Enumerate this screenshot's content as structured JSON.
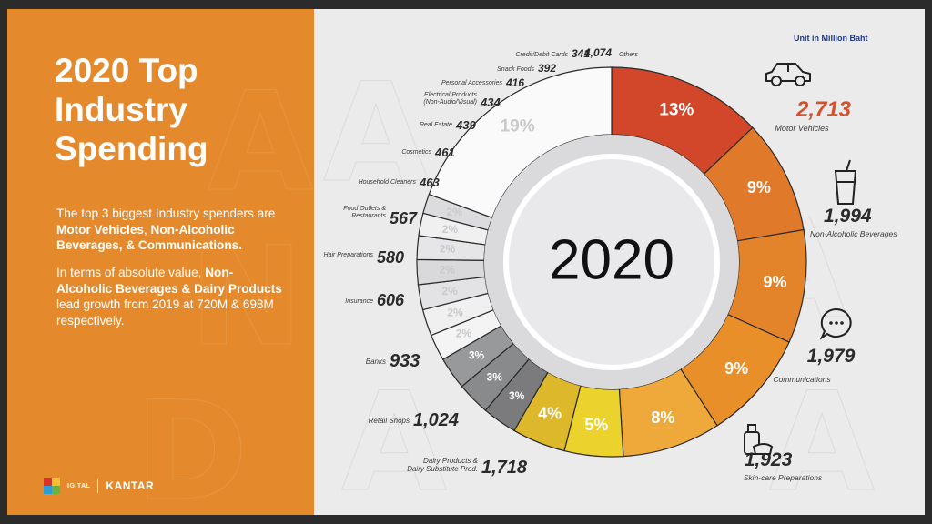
{
  "slide": {
    "title_lines": [
      "2020 Top",
      "Industry",
      "Spending"
    ],
    "para1": {
      "t1": "The top 3 biggest Industry spenders are ",
      "b1": "Motor Vehicles",
      "t2": ", ",
      "b2": "Non-Alcoholic Beverages, & Communications."
    },
    "para2": {
      "t1": "In terms of absolute value, ",
      "b1": "Non-Alcoholic Beverages & Dairy Products",
      "t2": " lead growth from 2019 at 720M & 698M respectively."
    },
    "footer": {
      "logo_text": "IGITAL",
      "brand": "KANTAR"
    },
    "unit_note": "Unit in Million Baht",
    "colors": {
      "left_panel": "#e58a2c",
      "right_panel": "#ebebeb",
      "accent_value": "#d6502a"
    }
  },
  "chart_data": {
    "type": "donut",
    "center_label": "2020",
    "segments": [
      {
        "category": "Motor Vehicles",
        "value": 2713,
        "value_label": "2,713",
        "pct": 13,
        "pct_label": "13%",
        "color": "#d2472a",
        "icon": "car-icon"
      },
      {
        "category": "Non-Alcoholic Beverages",
        "value": 1994,
        "value_label": "1,994",
        "pct": 9,
        "pct_label": "9%",
        "color": "#e1792a",
        "icon": "drink-cup-icon"
      },
      {
        "category": "Communications",
        "value": 1979,
        "value_label": "1,979",
        "pct": 9,
        "pct_label": "9%",
        "color": "#e3832a",
        "icon": "chat-bubble-icon"
      },
      {
        "category": "Skin-care Preparations",
        "value": 1923,
        "value_label": "1,923",
        "pct": 9,
        "pct_label": "9%",
        "color": "#e88f2a",
        "icon": "skincare-bottle-icon"
      },
      {
        "category": "Dairy Products & Dairy Substitute Prod.",
        "value": 1718,
        "value_label": "1,718",
        "pct": 8,
        "pct_label": "8%",
        "color": "#efa83a"
      },
      {
        "category": "Retail Shops",
        "value": 1024,
        "value_label": "1,024",
        "pct": 5,
        "pct_label": "5%",
        "color": "#ecd22c"
      },
      {
        "category": "Banks",
        "value": 933,
        "value_label": "933",
        "pct": 4,
        "pct_label": "4%",
        "color": "#ddb82a"
      },
      {
        "category": "Insurance",
        "value": 606,
        "value_label": "606",
        "pct": 3,
        "pct_label": "3%",
        "color": "#7b7b7d"
      },
      {
        "category": "Hair Preparations",
        "value": 580,
        "value_label": "580",
        "pct": 3,
        "pct_label": "3%",
        "color": "#898a8c"
      },
      {
        "category": "Food Outlets & Restaurants",
        "value": 567,
        "value_label": "567",
        "pct": 3,
        "pct_label": "3%",
        "color": "#98999b"
      },
      {
        "category": "Household Cleaners",
        "value": 463,
        "value_label": "463",
        "pct": 2,
        "pct_label": "2%",
        "color": "#f4f4f4"
      },
      {
        "category": "Cosmetics",
        "value": 461,
        "value_label": "461",
        "pct": 2,
        "pct_label": "2%",
        "color": "#f0f0f1"
      },
      {
        "category": "Real Estate",
        "value": 439,
        "value_label": "439",
        "pct": 2,
        "pct_label": "2%",
        "color": "#e3e3e5"
      },
      {
        "category": "Electrical Products (Non-Audio/Visual)",
        "value": 434,
        "value_label": "434",
        "pct": 2,
        "pct_label": "2%",
        "color": "#d9d9dc"
      },
      {
        "category": "Personal Accessories",
        "value": 416,
        "value_label": "416",
        "pct": 2,
        "pct_label": "2%",
        "color": "#e6e6e8"
      },
      {
        "category": "Snack Foods",
        "value": 392,
        "value_label": "392",
        "pct": 2,
        "pct_label": "2%",
        "color": "#f0f0f1"
      },
      {
        "category": "Credit/Debit Cards",
        "value": 341,
        "value_label": "341",
        "pct": 2,
        "pct_label": "2%",
        "color": "#dcdcdf"
      },
      {
        "category": "Others",
        "value": 4074,
        "value_label": "4,074",
        "pct": 19,
        "pct_label": "19%",
        "color": "#fafafa"
      }
    ]
  }
}
